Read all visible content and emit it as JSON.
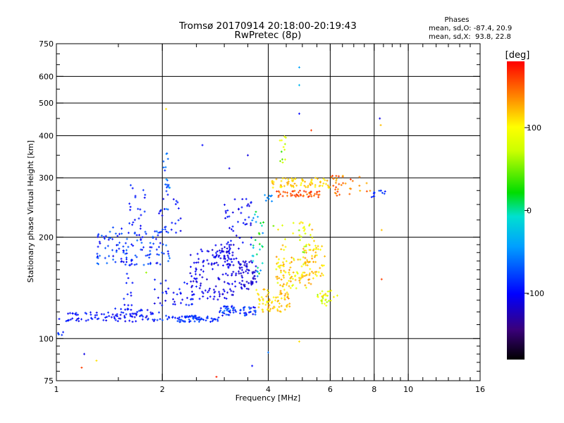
{
  "chart_data": {
    "type": "scatter",
    "title": "Tromsø 20170914 20:18:00-20:19:43",
    "subtitle": "RwPretec (8p)",
    "xlabel": "Frequency [MHz]",
    "ylabel": "Stationary phase Virtual Height [km]",
    "x_scale": "log",
    "y_scale": "log",
    "xlim": [
      1,
      16
    ],
    "ylim": [
      75,
      750
    ],
    "x_ticks": [
      1,
      2,
      4,
      6,
      8,
      10,
      16
    ],
    "x_tick_labels": [
      "1",
      "2",
      "4",
      "6",
      "8",
      "10",
      "16"
    ],
    "x_grid": [
      2,
      4,
      6,
      8,
      10
    ],
    "x_minor": [
      3,
      5,
      7,
      9
    ],
    "y_ticks": [
      75,
      100,
      200,
      300,
      400,
      500,
      600,
      750
    ],
    "y_tick_labels": [
      "75",
      "100",
      "200",
      "300",
      "400",
      "500",
      "600",
      "750"
    ],
    "y_grid": [
      100,
      200,
      300,
      400,
      500,
      600
    ],
    "grid": true,
    "info": {
      "heading": "Phases",
      "line_o": "mean, sd,O: -87.4, 20.9",
      "line_x": "mean, sd,X:  93.8, 22.8"
    },
    "colorbar": {
      "label": "[deg]",
      "min": -180,
      "max": 180,
      "ticks": [
        100,
        0,
        -100
      ],
      "tick_labels": [
        "100",
        "0",
        "-100"
      ],
      "placement": "right"
    },
    "clusters": [
      {
        "x": [
          1.0,
          1.45
        ],
        "y": [
          112,
          120
        ],
        "phase": [
          -110,
          -85
        ],
        "n": 45
      },
      {
        "x": [
          1.45,
          2.0
        ],
        "y": [
          112,
          123
        ],
        "phase": [
          -115,
          -80
        ],
        "n": 60
      },
      {
        "x": [
          1.55,
          1.65
        ],
        "y": [
          115,
          160
        ],
        "phase": [
          -110,
          -85
        ],
        "n": 15
      },
      {
        "x": [
          2.0,
          2.9
        ],
        "y": [
          112,
          117
        ],
        "phase": [
          -100,
          -70
        ],
        "n": 70
      },
      {
        "x": [
          2.9,
          3.7
        ],
        "y": [
          117,
          125
        ],
        "phase": [
          -110,
          -60
        ],
        "n": 60
      },
      {
        "x": [
          1.3,
          2.1
        ],
        "y": [
          165,
          215
        ],
        "phase": [
          -110,
          -60
        ],
        "n": 130
      },
      {
        "x": [
          1.6,
          1.8
        ],
        "y": [
          215,
          290
        ],
        "phase": [
          -105,
          -80
        ],
        "n": 20
      },
      {
        "x": [
          1.9,
          2.3
        ],
        "y": [
          200,
          260
        ],
        "phase": [
          -110,
          -75
        ],
        "n": 25
      },
      {
        "x": [
          1.9,
          2.6
        ],
        "y": [
          125,
          150
        ],
        "phase": [
          -115,
          -85
        ],
        "n": 40
      },
      {
        "x": [
          2.0,
          2.1
        ],
        "y": [
          230,
          360
        ],
        "phase": [
          -100,
          -40
        ],
        "n": 20
      },
      {
        "x": [
          2.4,
          3.3
        ],
        "y": [
          130,
          185
        ],
        "phase": [
          -120,
          -100
        ],
        "n": 120
      },
      {
        "x": [
          2.8,
          3.2
        ],
        "y": [
          165,
          190
        ],
        "phase": [
          -120,
          -95
        ],
        "n": 40
      },
      {
        "x": [
          3.0,
          3.6
        ],
        "y": [
          190,
          260
        ],
        "phase": [
          -115,
          -90
        ],
        "n": 40
      },
      {
        "x": [
          3.3,
          3.7
        ],
        "y": [
          140,
          170
        ],
        "phase": [
          -125,
          -105
        ],
        "n": 60
      },
      {
        "x": [
          3.6,
          3.9
        ],
        "y": [
          150,
          240
        ],
        "phase": [
          -60,
          40
        ],
        "n": 30
      },
      {
        "x": [
          3.7,
          4.0
        ],
        "y": [
          120,
          140
        ],
        "phase": [
          90,
          130
        ],
        "n": 25
      },
      {
        "x": [
          4.0,
          4.7
        ],
        "y": [
          120,
          140
        ],
        "phase": [
          100,
          140
        ],
        "n": 50
      },
      {
        "x": [
          4.2,
          5.3
        ],
        "y": [
          140,
          175
        ],
        "phase": [
          80,
          140
        ],
        "n": 90
      },
      {
        "x": [
          5.0,
          5.8
        ],
        "y": [
          150,
          190
        ],
        "phase": [
          95,
          135
        ],
        "n": 50
      },
      {
        "x": [
          5.5,
          6.3
        ],
        "y": [
          125,
          140
        ],
        "phase": [
          60,
          120
        ],
        "n": 30
      },
      {
        "x": [
          4.0,
          5.5
        ],
        "y": [
          180,
          225
        ],
        "phase": [
          50,
          130
        ],
        "n": 35
      },
      {
        "x": [
          4.2,
          5.6
        ],
        "y": [
          262,
          275
        ],
        "phase": [
          140,
          170
        ],
        "n": 50
      },
      {
        "x": [
          4.1,
          6.0
        ],
        "y": [
          280,
          300
        ],
        "phase": [
          100,
          130
        ],
        "n": 70
      },
      {
        "x": [
          6.0,
          7.8
        ],
        "y": [
          265,
          305
        ],
        "phase": [
          120,
          165
        ],
        "n": 35
      },
      {
        "x": [
          7.8,
          8.6
        ],
        "y": [
          262,
          275
        ],
        "phase": [
          -100,
          -75
        ],
        "n": 12
      },
      {
        "x": [
          4.3,
          4.5
        ],
        "y": [
          330,
          400
        ],
        "phase": [
          30,
          100
        ],
        "n": 12
      },
      {
        "x": [
          3.9,
          4.1
        ],
        "y": [
          255,
          270
        ],
        "phase": [
          -60,
          -30
        ],
        "n": 8
      },
      {
        "x": [
          1.0,
          1.05
        ],
        "y": [
          102,
          106
        ],
        "phase": [
          -95,
          -70
        ],
        "n": 5
      }
    ],
    "outliers": [
      {
        "x": 4.9,
        "y": 638,
        "phase": -40
      },
      {
        "x": 4.9,
        "y": 565,
        "phase": -30
      },
      {
        "x": 4.9,
        "y": 465,
        "phase": -100
      },
      {
        "x": 5.3,
        "y": 415,
        "phase": 160
      },
      {
        "x": 8.3,
        "y": 450,
        "phase": -110
      },
      {
        "x": 8.35,
        "y": 430,
        "phase": 120
      },
      {
        "x": 2.05,
        "y": 480,
        "phase": 110
      },
      {
        "x": 2.6,
        "y": 375,
        "phase": -100
      },
      {
        "x": 3.5,
        "y": 350,
        "phase": -110
      },
      {
        "x": 1.2,
        "y": 90,
        "phase": -110
      },
      {
        "x": 1.3,
        "y": 86,
        "phase": 110
      },
      {
        "x": 1.18,
        "y": 82,
        "phase": 160
      },
      {
        "x": 2.85,
        "y": 77,
        "phase": 170
      },
      {
        "x": 3.6,
        "y": 83,
        "phase": -100
      },
      {
        "x": 4.0,
        "y": 91,
        "phase": -60
      },
      {
        "x": 4.9,
        "y": 98,
        "phase": 110
      },
      {
        "x": 8.4,
        "y": 210,
        "phase": 120
      },
      {
        "x": 8.4,
        "y": 150,
        "phase": 160
      },
      {
        "x": 1.8,
        "y": 157,
        "phase": 60
      },
      {
        "x": 3.1,
        "y": 320,
        "phase": -110
      }
    ]
  }
}
